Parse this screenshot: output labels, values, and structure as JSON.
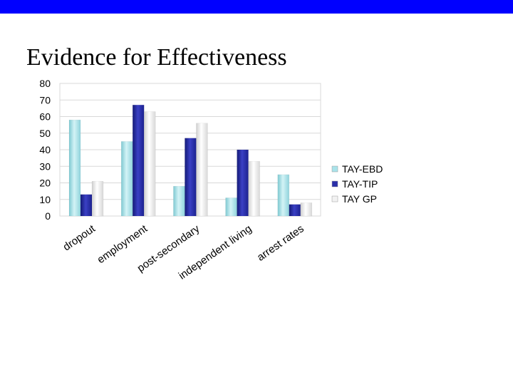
{
  "slide": {
    "title": "Evidence for Effectiveness",
    "bar_color": "#0000ff"
  },
  "chart_data": {
    "type": "bar",
    "title": "",
    "xlabel": "",
    "ylabel": "",
    "ylim": [
      0,
      80
    ],
    "yticks": [
      0,
      10,
      20,
      30,
      40,
      50,
      60,
      70,
      80
    ],
    "grid": true,
    "legend_position": "right",
    "categories": [
      "dropout",
      "employment",
      "post-secondary",
      "independent living",
      "arrest rates"
    ],
    "series": [
      {
        "name": "TAY-EBD",
        "values": [
          58,
          45,
          18,
          11,
          25
        ],
        "color": "#a9e3ea"
      },
      {
        "name": "TAY-TIP",
        "values": [
          13,
          67,
          47,
          40,
          7
        ],
        "color": "#2a2ea8"
      },
      {
        "name": "TAY GP",
        "values": [
          21,
          63,
          56,
          33,
          8
        ],
        "color": "#f2f2f2"
      }
    ]
  }
}
